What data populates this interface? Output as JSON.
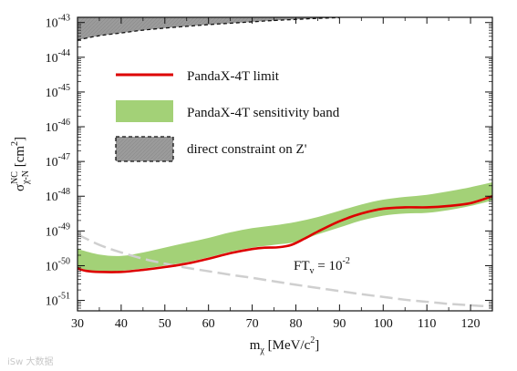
{
  "chart_data": {
    "type": "line",
    "title": "",
    "xlabel": {
      "base": "m",
      "sub": "χ",
      "rest": " [MeV/c",
      "sup": "2",
      "close": "]"
    },
    "ylabel": {
      "base": "σ",
      "sup": "NC",
      "sub": "χ-N",
      "rest": " [cm",
      "sup2": "2",
      "close": "]"
    },
    "xlim": [
      30,
      125
    ],
    "ylim_exp": [
      -51.3,
      -42.85
    ],
    "yscale": "log",
    "x_ticks": [
      30,
      40,
      50,
      60,
      70,
      80,
      90,
      100,
      110,
      120
    ],
    "y_ticks_exp": [
      -51,
      -50,
      -49,
      -48,
      -47,
      -46,
      -45,
      -44,
      -43
    ],
    "y_tick_base": "10",
    "legend": {
      "placement": "upper-left",
      "entries": [
        {
          "label": "PandaX-4T limit",
          "color": "#dd0000",
          "style": "line"
        },
        {
          "label": "PandaX-4T sensitivity band",
          "color": "#a3d177",
          "style": "band"
        },
        {
          "label": "direct constraint on Z'",
          "color": "#9b9b9b",
          "style": "hatched-dashed"
        }
      ]
    },
    "series": [
      {
        "name": "PandaX-4T limit",
        "color": "#dd0000",
        "x": [
          30,
          32,
          35,
          40,
          45,
          50,
          55,
          60,
          65,
          70,
          73,
          76,
          79,
          82,
          85,
          90,
          95,
          100,
          105,
          110,
          115,
          120,
          125
        ],
        "y_exp": [
          -50.08,
          -50.15,
          -50.18,
          -50.18,
          -50.12,
          -50.04,
          -49.94,
          -49.8,
          -49.64,
          -49.52,
          -49.48,
          -49.47,
          -49.4,
          -49.22,
          -49.02,
          -48.72,
          -48.5,
          -48.36,
          -48.32,
          -48.32,
          -48.28,
          -48.2,
          -48.0
        ]
      },
      {
        "name": "PandaX-4T sensitivity band",
        "color": "#a3d177",
        "x": [
          30,
          35,
          40,
          45,
          50,
          55,
          60,
          65,
          70,
          75,
          80,
          85,
          90,
          95,
          100,
          105,
          110,
          115,
          120,
          125
        ],
        "lower_exp": [
          -50.05,
          -50.2,
          -50.15,
          -50.08,
          -50.0,
          -49.9,
          -49.76,
          -49.6,
          -49.48,
          -49.4,
          -49.32,
          -49.1,
          -48.9,
          -48.7,
          -48.56,
          -48.5,
          -48.48,
          -48.4,
          -48.28,
          -48.12
        ],
        "upper_exp": [
          -49.52,
          -49.68,
          -49.72,
          -49.62,
          -49.48,
          -49.34,
          -49.2,
          -49.04,
          -48.92,
          -48.84,
          -48.74,
          -48.6,
          -48.42,
          -48.24,
          -48.1,
          -48.02,
          -47.96,
          -47.86,
          -47.74,
          -47.6
        ]
      },
      {
        "name": "direct constraint on Z'",
        "color": "#9b9b9b",
        "x": [
          30,
          35,
          40,
          45,
          50,
          55,
          60,
          65,
          70,
          75,
          80,
          85,
          90
        ],
        "boundary_exp": [
          -43.5,
          -43.38,
          -43.3,
          -43.22,
          -43.16,
          -43.11,
          -43.06,
          -43.02,
          -42.98,
          -42.94,
          -42.91,
          -42.88,
          -42.86
        ]
      },
      {
        "name": "FT_v = 10^-2",
        "color": "#cfcfcf",
        "x": [
          30,
          35,
          40,
          45,
          50,
          55,
          60,
          65,
          70,
          75,
          80,
          85,
          90,
          95,
          100,
          105,
          110,
          115,
          120,
          125
        ],
        "y_exp": [
          -49.1,
          -49.4,
          -49.62,
          -49.8,
          -49.94,
          -50.06,
          -50.16,
          -50.26,
          -50.35,
          -50.45,
          -50.55,
          -50.64,
          -50.73,
          -50.82,
          -50.9,
          -50.98,
          -51.04,
          -51.1,
          -51.14,
          -51.18
        ]
      }
    ],
    "annotation": {
      "text_base": "FT",
      "text_sub": "v",
      "text_mid": " = ",
      "text_pow_base": "10",
      "text_pow": "-2"
    }
  },
  "watermark": "iSw 大数据"
}
